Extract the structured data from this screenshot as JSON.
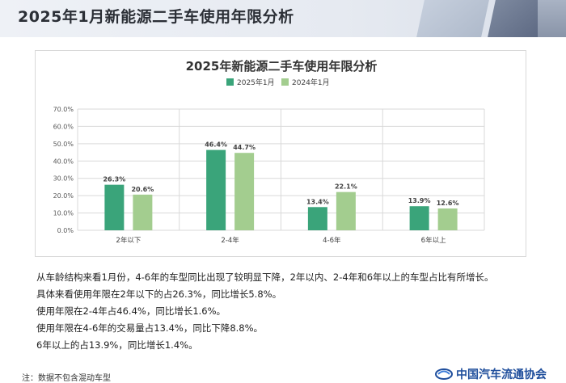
{
  "header": {
    "title": "2025年1月新能源二手车使用年限分析"
  },
  "chart_data": {
    "type": "bar",
    "title": "2025年新能源二手车使用年限分析",
    "categories": [
      "2年以下",
      "2-4年",
      "4-6年",
      "6年以上"
    ],
    "series": [
      {
        "name": "2025年1月",
        "values": [
          26.3,
          46.4,
          13.4,
          13.9
        ],
        "labels": [
          "26.3%",
          "46.4%",
          "13.4%",
          "13.9%"
        ],
        "color": "#3aa47a"
      },
      {
        "name": "2024年1月",
        "values": [
          20.6,
          44.7,
          22.1,
          12.6
        ],
        "labels": [
          "20.6%",
          "44.7%",
          "22.1%",
          "12.6%"
        ],
        "color": "#a3cd8f"
      }
    ],
    "ylim": [
      0,
      70
    ],
    "yticks": [
      "0.0%",
      "10.0%",
      "20.0%",
      "30.0%",
      "40.0%",
      "50.0%",
      "60.0%",
      "70.0%"
    ],
    "grid": true,
    "legend": "top-center"
  },
  "notes": [
    "从车龄结构来看1月份，4-6年的车型同比出现了较明显下降，2年以内、2-4年和6年以上的车型占比有所增长。",
    "具体来看使用年限在2年以下的占26.3%，同比增长5.8%。",
    "使用年限在2-4年占46.4%，同比增长1.6%。",
    "使用年限在4-6年的交易量占13.4%，同比下降8.8%。",
    "6年以上的占13.9%，同比增长1.4%。"
  ],
  "footnote": "注：数据不包含混动车型",
  "footer": {
    "org_name": "中国汽车流通协会"
  }
}
